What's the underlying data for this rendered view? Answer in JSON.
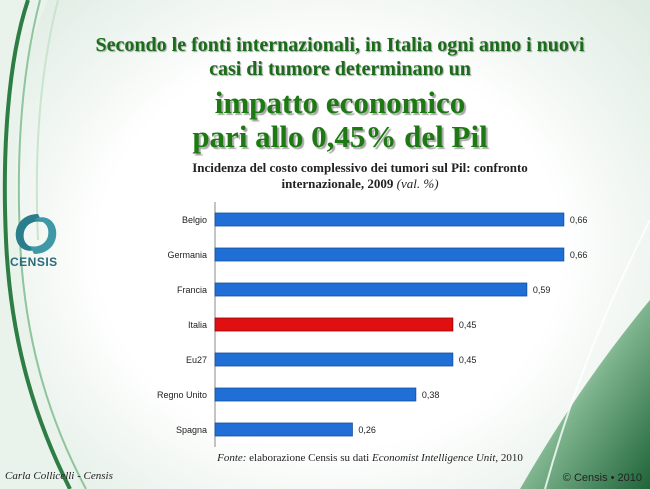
{
  "header": {
    "line1": "Secondo le fonti internazionali, in Italia ogni anno i nuovi",
    "line2": "casi di tumore determinano un",
    "line3": "impatto economico",
    "line4": "pari allo 0,45% del Pil"
  },
  "brand": {
    "logo_text": "CENSIS"
  },
  "footer": {
    "source_label": "Fonte:",
    "source_text": " elaborazione Censis su dati ",
    "source_italic": "Economist Intelligence Unit",
    "source_year": ", 2010",
    "author": "Carla Collicelli - Censis",
    "copyright": "© Censis • 2010"
  },
  "colors": {
    "bar_default": "#1f6fd6",
    "bar_highlight": "#e01010",
    "title_green": "#1d7a12",
    "deco_green": "#2e7d45"
  },
  "chart_data": {
    "type": "bar",
    "orientation": "horizontal",
    "title": "Incidenza del costo complessivo dei tumori sul Pil: confronto internazionale, 2009",
    "title_unit": "(val. %)",
    "categories": [
      "Belgio",
      "Germania",
      "Francia",
      "Italia",
      "Eu27",
      "Regno Unito",
      "Spagna"
    ],
    "values": [
      0.66,
      0.66,
      0.59,
      0.45,
      0.45,
      0.38,
      0.26
    ],
    "value_labels": [
      "0,66",
      "0,66",
      "0,59",
      "0,45",
      "0,45",
      "0,38",
      "0,26"
    ],
    "highlight": "Italia",
    "xlim": [
      0,
      0.7
    ],
    "grid": false,
    "legend": "none"
  }
}
